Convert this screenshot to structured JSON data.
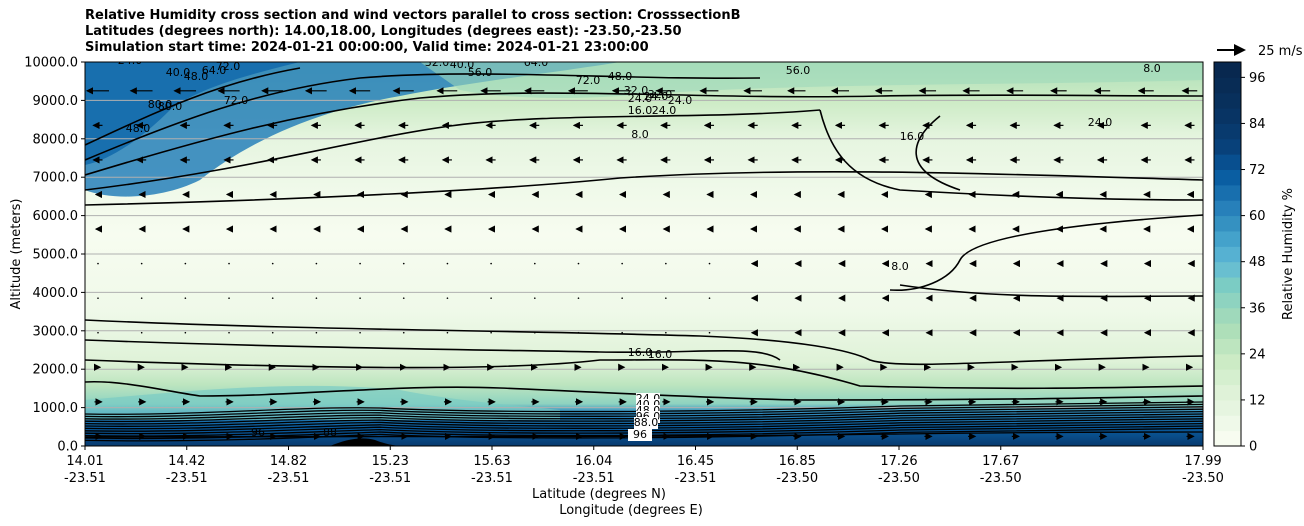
{
  "chart_data": {
    "type": "heatmap",
    "title_lines": [
      "Relative Humidity cross section and wind vectors parallel to cross section: CrosssectionB",
      "Latitudes (degrees north): 14.00,18.00, Longitudes (degrees east): -23.50,-23.50",
      "Simulation start time: 2024-01-21 00:00:00, Valid time: 2024-01-21 23:00:00"
    ],
    "ylabel": "Altitude (meters)",
    "xlabel_lat": "Latitude (degrees N)",
    "xlabel_lon": "Longitude (degrees E)",
    "ylim": [
      0,
      10000
    ],
    "y_ticks": [
      "0.0",
      "1000.0",
      "2000.0",
      "3000.0",
      "4000.0",
      "5000.0",
      "6000.0",
      "7000.0",
      "8000.0",
      "9000.0",
      "10000.0"
    ],
    "x_ticks": [
      {
        "lat": "14.01",
        "lon": "-23.51"
      },
      {
        "lat": "14.42",
        "lon": "-23.51"
      },
      {
        "lat": "14.82",
        "lon": "-23.51"
      },
      {
        "lat": "15.23",
        "lon": "-23.51"
      },
      {
        "lat": "15.63",
        "lon": "-23.51"
      },
      {
        "lat": "16.04",
        "lon": "-23.51"
      },
      {
        "lat": "16.45",
        "lon": "-23.51"
      },
      {
        "lat": "16.85",
        "lon": "-23.50"
      },
      {
        "lat": "17.26",
        "lon": "-23.50"
      },
      {
        "lat": "17.67",
        "lon": "-23.50"
      },
      {
        "lat": "17.99",
        "lon": "-23.50"
      }
    ],
    "colorbar": {
      "label": "Relative Humidity %",
      "ticks": [
        "0",
        "12",
        "24",
        "36",
        "48",
        "60",
        "72",
        "84",
        "96"
      ],
      "min": 0,
      "max": 100,
      "step": 4,
      "colors": [
        "#f7fcf0",
        "#eff9e9",
        "#e6f5e0",
        "#dff2d8",
        "#d5efcf",
        "#ccebc5",
        "#bde5bf",
        "#aedfb9",
        "#9fd9bb",
        "#8ed3c0",
        "#7bccc4",
        "#69bfd0",
        "#56b1d2",
        "#44a2cb",
        "#3591c1",
        "#2780ba",
        "#186fae",
        "#0a5ea2",
        "#084f8f",
        "#08417a",
        "#083a6e",
        "#083464",
        "#08305c",
        "#082c55",
        "#08284f"
      ]
    },
    "wind_reference": "25 m/s",
    "grid": true,
    "contour_labels": [
      "24.0",
      "40.0",
      "48.0",
      "64.0",
      "72.0",
      "80.0",
      "48.0",
      "72.0",
      "80.0",
      "32.0",
      "40.0",
      "56.0",
      "64.0",
      "72.0",
      "48.0",
      "32.0",
      "24.0",
      "24.0",
      "16.0",
      "24.0",
      "32.0",
      "24.0",
      "8.0",
      "56.0",
      "8.0",
      "16.0",
      "24.0",
      "8.0",
      "16.0",
      "16.0",
      "24.0",
      "40.0",
      "48.0",
      "96.0",
      "88.0",
      "96",
      "96",
      "88"
    ],
    "altitude_rh_profile_m": [
      {
        "alt": 0,
        "rh": 96
      },
      {
        "alt": 500,
        "rh": 90
      },
      {
        "alt": 1000,
        "rh": 45
      },
      {
        "alt": 1500,
        "rh": 30
      },
      {
        "alt": 2000,
        "rh": 20
      },
      {
        "alt": 3000,
        "rh": 10
      },
      {
        "alt": 5000,
        "rh": 4
      },
      {
        "alt": 6000,
        "rh": 6
      },
      {
        "alt": 7000,
        "rh": 12
      },
      {
        "alt": 8000,
        "rh": 18
      },
      {
        "alt": 9000,
        "rh": 30
      },
      {
        "alt": 10000,
        "rh": 40
      }
    ]
  }
}
